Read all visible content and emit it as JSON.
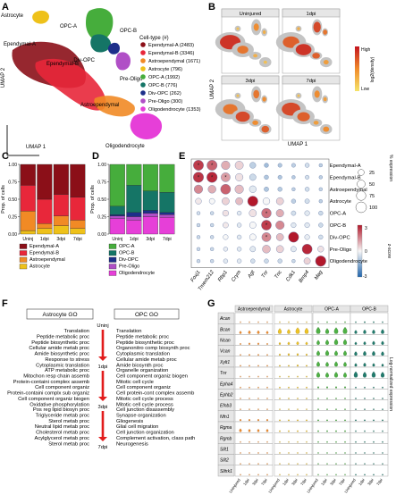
{
  "colors": {
    "ependymal_a": "#8b0f18",
    "ependymal_b": "#e8273a",
    "astroependymal": "#f18a25",
    "astrocyte": "#eec11a",
    "opc_a": "#46ad3c",
    "opc_b": "#157566",
    "div_opc": "#1d2f8a",
    "pre_oligo": "#b04fc6",
    "oligodendrocyte": "#e63fd8",
    "grey": "#c4c4c4",
    "density_high": "#c4141e",
    "density_low": "#f5e46a",
    "arrow": "#e21c1c"
  },
  "panels": {
    "A": "A",
    "B": "B",
    "C": "C",
    "D": "D",
    "E": "E",
    "F": "F",
    "G": "G"
  },
  "panelA": {
    "xlabel": "UMAP 1",
    "ylabel": "UMAP 2",
    "cluster_labels": {
      "astrocyte": "Astrocyte",
      "opc_a": "OPC-A",
      "opc_b": "OPC-B",
      "div_opc": "Div-OPC",
      "ependymal_a": "Ependymal-A",
      "ependymal_b": "Ependymal-B",
      "pre_oligo": "Pre-Oligo",
      "astroependymal": "Astroependymal",
      "oligodendrocyte": "Oligodendrocyte"
    },
    "legend_title": "Cell-type (#)",
    "legend": [
      {
        "label": "Ependymal-A (2483)",
        "color_key": "ependymal_a"
      },
      {
        "label": "Ependymal-B (3346)",
        "color_key": "ependymal_b"
      },
      {
        "label": "Astroependymal (1671)",
        "color_key": "astroependymal"
      },
      {
        "label": "Astrocyte (796)",
        "color_key": "astrocyte"
      },
      {
        "label": "OPC-A (1992)",
        "color_key": "opc_a"
      },
      {
        "label": "OPC-B (776)",
        "color_key": "opc_b"
      },
      {
        "label": "Div-OPC (262)",
        "color_key": "div_opc"
      },
      {
        "label": "Pre-Oligo (300)",
        "color_key": "pre_oligo"
      },
      {
        "label": "Oligodendrocyte (1353)",
        "color_key": "oligodendrocyte"
      }
    ]
  },
  "panelB": {
    "xlabel": "UMAP 1",
    "ylabel": "UMAP 2",
    "facets": [
      "Uninjured",
      "1dpi",
      "3dpi",
      "7dpi"
    ],
    "colorbar_title": "log2(density)",
    "colorbar_high": "High",
    "colorbar_low": "Low"
  },
  "panelE": {
    "size_legend_title": "% expression",
    "size_values": [
      "25",
      "50",
      "75",
      "100"
    ],
    "color_legend_title": "z-score",
    "color_ticks": [
      "3",
      "0",
      "-3"
    ]
  },
  "panelF": {
    "astro_header": "Astrocyte GO",
    "opc_header": "OPC GO",
    "timepoints": [
      "Uninj",
      "1dpi",
      "3dpi",
      "7dpi"
    ],
    "astro_groups": [
      [
        "Translation",
        "Peptide metabolic proc",
        "Peptide biosynthetic proc",
        "Cellular amide metab proc",
        "Amide biosynthetic proc",
        "Response to stress",
        "Cytoplasmic translation"
      ],
      [
        "ATP metabolic proc",
        "Mitochon resp chain assemb",
        "Protein-containi complex assemb",
        "Cell component organiz",
        "Protein-containi complx sub organiz",
        "Cell component organiz biogen",
        "Oxidative phosphorylation"
      ],
      [
        "Pos reg lipid biosyn proc",
        "Triglyceride metab proc",
        "Sterol metab proc",
        "Neutral lipid metab proc",
        "Cholesterol metab proc",
        "Acylglycerol metab proc",
        "Sterol metab proc"
      ]
    ],
    "opc_groups": [
      [
        "Translation",
        "Peptide metabolic proc",
        "Peptide biosynthetic proc",
        "Organonitro comp biosynth proc",
        "Cytoplasmic translation",
        "Cellular amide metab proc",
        "Amide biosynth proc"
      ],
      [
        "Organelle organization",
        "Cell component organiz biogen",
        "Mitotic cell cycle",
        "Cell component organiz",
        "Cell protein-cont complex assemb",
        "Mitotic cell cycle process",
        "Mitotic cell cycle process"
      ],
      [
        "Cell junction disassembly",
        "Synapse organization",
        "Gliogenesis",
        "Glial cell migration",
        "Cell junction organization",
        "Complement activation, class path",
        "Neurogenesis"
      ]
    ]
  },
  "panelG": {
    "columns": [
      "Astroependymal",
      "Astrocyte",
      "OPC-A",
      "OPC-B"
    ],
    "ylabel": "Log-normalized expression",
    "xticks": [
      "Uninjured",
      "1dpi",
      "3dpi",
      "7dpi"
    ]
  },
  "chart_data": [
    {
      "type": "bar",
      "panel": "C",
      "ylabel": "Prop. of cells",
      "stacked": true,
      "categories": [
        "Uninj",
        "1dpi",
        "3dpi",
        "7dpi"
      ],
      "yticks": [
        "0.00",
        "0.25",
        "0.50",
        "0.75",
        "1.00"
      ],
      "ylim": [
        0,
        1
      ],
      "series": [
        {
          "name": "Astrocyte",
          "color_key": "astrocyte",
          "values": [
            0.05,
            0.08,
            0.12,
            0.08
          ]
        },
        {
          "name": "Astroependymal",
          "color_key": "astroependymal",
          "values": [
            0.28,
            0.07,
            0.14,
            0.12
          ]
        },
        {
          "name": "Ependymal-B",
          "color_key": "ependymal_b",
          "values": [
            0.37,
            0.35,
            0.31,
            0.33
          ]
        },
        {
          "name": "Ependymal-A",
          "color_key": "ependymal_a",
          "values": [
            0.3,
            0.5,
            0.43,
            0.47
          ]
        }
      ],
      "legend_order": [
        "Ependymal-A",
        "Ependymal-B",
        "Astroependymal",
        "Astrocyte"
      ]
    },
    {
      "type": "bar",
      "panel": "D",
      "ylabel": "Prop. of cells",
      "stacked": true,
      "categories": [
        "Uninj",
        "1dpi",
        "3dpi",
        "7dpi"
      ],
      "yticks": [
        "0.00",
        "0.25",
        "0.50",
        "0.75",
        "1.00"
      ],
      "ylim": [
        0,
        1
      ],
      "series": [
        {
          "name": "Oligodendrocyte",
          "color_key": "oligodendrocyte",
          "values": [
            0.22,
            0.2,
            0.25,
            0.24
          ]
        },
        {
          "name": "Pre-Oligo",
          "color_key": "pre_oligo",
          "values": [
            0.04,
            0.05,
            0.05,
            0.04
          ]
        },
        {
          "name": "Div-OPC",
          "color_key": "div_opc",
          "values": [
            0.02,
            0.06,
            0.04,
            0.03
          ]
        },
        {
          "name": "OPC-B",
          "color_key": "opc_b",
          "values": [
            0.12,
            0.39,
            0.28,
            0.29
          ]
        },
        {
          "name": "OPC-A",
          "color_key": "opc_a",
          "values": [
            0.6,
            0.3,
            0.38,
            0.4
          ]
        }
      ],
      "legend_order": [
        "OPC-A",
        "OPC-B",
        "Div-OPC",
        "Pre-Oligo",
        "Oligodendrocyte"
      ]
    },
    {
      "type": "scatter",
      "panel": "E",
      "subtype": "dotplot",
      "genes": [
        "Foxj1",
        "Tmem212",
        "Rbp1",
        "Crym",
        "Agt",
        "Tnr",
        "Tnc",
        "Cdk1",
        "Bmp4",
        "Mag"
      ],
      "celltypes": [
        "Ependymal-A",
        "Ependymal-B",
        "Astroependymal",
        "Astrocyte",
        "OPC-A",
        "OPC-B",
        "Div-OPC",
        "Pre-Oligo",
        "Oligodendrocyte"
      ],
      "pct": [
        [
          90,
          90,
          60,
          55,
          25,
          10,
          8,
          8,
          10,
          5
        ],
        [
          92,
          95,
          70,
          45,
          30,
          10,
          8,
          5,
          8,
          5
        ],
        [
          60,
          50,
          85,
          60,
          35,
          12,
          10,
          5,
          10,
          5
        ],
        [
          25,
          20,
          40,
          40,
          90,
          35,
          40,
          10,
          12,
          5
        ],
        [
          5,
          5,
          25,
          10,
          40,
          80,
          45,
          12,
          15,
          10
        ],
        [
          5,
          5,
          20,
          10,
          30,
          85,
          60,
          15,
          15,
          10
        ],
        [
          5,
          5,
          15,
          10,
          30,
          70,
          40,
          90,
          15,
          10
        ],
        [
          5,
          5,
          10,
          10,
          20,
          50,
          40,
          20,
          85,
          25
        ],
        [
          5,
          5,
          10,
          10,
          10,
          10,
          10,
          5,
          30,
          95
        ]
      ],
      "z": [
        [
          2.5,
          2.0,
          1.0,
          0.5,
          -0.8,
          -1.2,
          -1.0,
          -0.8,
          -0.5,
          -0.8
        ],
        [
          2.6,
          2.8,
          1.2,
          0.3,
          -0.6,
          -1.0,
          -1.0,
          -0.9,
          -0.5,
          -0.8
        ],
        [
          1.5,
          1.0,
          2.0,
          0.8,
          -0.3,
          -1.0,
          -0.9,
          -0.8,
          -0.5,
          -0.7
        ],
        [
          0.2,
          0.0,
          0.5,
          0.8,
          3.0,
          0.0,
          0.5,
          -0.8,
          -0.5,
          -0.8
        ],
        [
          -0.5,
          -0.6,
          0.3,
          -0.3,
          0.3,
          1.8,
          1.0,
          -0.5,
          -0.3,
          -0.6
        ],
        [
          -0.6,
          -0.6,
          0.2,
          -0.3,
          0.0,
          2.5,
          1.5,
          -0.3,
          -0.3,
          -0.6
        ],
        [
          -0.6,
          -0.6,
          0.0,
          -0.3,
          0.0,
          1.5,
          0.8,
          3.0,
          -0.2,
          -0.5
        ],
        [
          -0.6,
          -0.6,
          -0.2,
          -0.3,
          -0.3,
          0.8,
          0.5,
          -0.3,
          2.8,
          0.3
        ],
        [
          -0.6,
          -0.6,
          -0.3,
          -0.3,
          -0.5,
          -0.6,
          -0.6,
          -0.6,
          0.5,
          3.0
        ]
      ],
      "starred": [
        [
          0,
          0
        ],
        [
          0,
          1
        ],
        [
          1,
          0
        ],
        [
          1,
          1
        ],
        [
          1,
          2
        ],
        [
          4,
          5
        ],
        [
          5,
          5
        ],
        [
          6,
          5
        ]
      ]
    },
    {
      "type": "area",
      "panel": "G",
      "subtype": "violin",
      "genes": [
        "Acan",
        "Bcan",
        "Ncan",
        "Vcan",
        "Xylt1",
        "Tnr",
        "Epha4",
        "Ephb2",
        "Efnb3",
        "Nfn1",
        "Rgma",
        "Rgmb",
        "Slit1",
        "Slit2",
        "Slitrk1"
      ],
      "conditions": [
        "Uninjured",
        "1dpi",
        "3dpi",
        "7dpi"
      ],
      "level": [
        [
          [
            0.05,
            0.05,
            0.05,
            0.05
          ],
          [
            0.05,
            0.05,
            0.05,
            0.05
          ],
          [
            0.08,
            0.1,
            0.08,
            0.1
          ],
          [
            0.1,
            0.15,
            0.12,
            0.1
          ]
        ],
        [
          [
            0.3,
            0.35,
            0.35,
            0.3
          ],
          [
            0.6,
            0.5,
            0.7,
            0.65
          ],
          [
            0.75,
            0.6,
            0.7,
            0.75
          ],
          [
            0.4,
            0.45,
            0.45,
            0.5
          ]
        ],
        [
          [
            0.15,
            0.2,
            0.2,
            0.15
          ],
          [
            0.25,
            0.3,
            0.35,
            0.3
          ],
          [
            0.5,
            0.55,
            0.65,
            0.6
          ],
          [
            0.3,
            0.35,
            0.4,
            0.4
          ]
        ],
        [
          [
            0.1,
            0.15,
            0.15,
            0.1
          ],
          [
            0.2,
            0.25,
            0.25,
            0.2
          ],
          [
            0.55,
            0.6,
            0.55,
            0.55
          ],
          [
            0.45,
            0.5,
            0.5,
            0.45
          ]
        ],
        [
          [
            0.1,
            0.1,
            0.1,
            0.1
          ],
          [
            0.15,
            0.15,
            0.2,
            0.15
          ],
          [
            0.55,
            0.5,
            0.55,
            0.5
          ],
          [
            0.35,
            0.4,
            0.35,
            0.3
          ]
        ],
        [
          [
            0.05,
            0.05,
            0.05,
            0.05
          ],
          [
            0.1,
            0.1,
            0.1,
            0.1
          ],
          [
            0.6,
            0.55,
            0.6,
            0.55
          ],
          [
            0.65,
            0.6,
            0.65,
            0.6
          ]
        ],
        [
          [
            0.1,
            0.1,
            0.1,
            0.1
          ],
          [
            0.15,
            0.15,
            0.15,
            0.15
          ],
          [
            0.2,
            0.2,
            0.2,
            0.2
          ],
          [
            0.15,
            0.15,
            0.15,
            0.15
          ]
        ],
        [
          [
            0.05,
            0.05,
            0.05,
            0.05
          ],
          [
            0.1,
            0.1,
            0.1,
            0.1
          ],
          [
            0.1,
            0.1,
            0.1,
            0.1
          ],
          [
            0.1,
            0.1,
            0.1,
            0.1
          ]
        ],
        [
          [
            0.05,
            0.05,
            0.05,
            0.05
          ],
          [
            0.05,
            0.05,
            0.05,
            0.05
          ],
          [
            0.1,
            0.1,
            0.1,
            0.1
          ],
          [
            0.1,
            0.1,
            0.1,
            0.1
          ]
        ],
        [
          [
            0.2,
            0.2,
            0.2,
            0.2
          ],
          [
            0.15,
            0.15,
            0.15,
            0.15
          ],
          [
            0.15,
            0.15,
            0.15,
            0.15
          ],
          [
            0.15,
            0.15,
            0.15,
            0.15
          ]
        ],
        [
          [
            0.35,
            0.3,
            0.3,
            0.3
          ],
          [
            0.15,
            0.15,
            0.15,
            0.15
          ],
          [
            0.15,
            0.15,
            0.15,
            0.15
          ],
          [
            0.1,
            0.1,
            0.1,
            0.1
          ]
        ],
        [
          [
            0.05,
            0.05,
            0.05,
            0.05
          ],
          [
            0.05,
            0.05,
            0.05,
            0.05
          ],
          [
            0.1,
            0.1,
            0.1,
            0.1
          ],
          [
            0.1,
            0.1,
            0.1,
            0.1
          ]
        ],
        [
          [
            0.05,
            0.05,
            0.05,
            0.05
          ],
          [
            0.05,
            0.05,
            0.05,
            0.05
          ],
          [
            0.05,
            0.05,
            0.05,
            0.05
          ],
          [
            0.05,
            0.05,
            0.05,
            0.05
          ]
        ],
        [
          [
            0.05,
            0.05,
            0.05,
            0.05
          ],
          [
            0.05,
            0.05,
            0.05,
            0.05
          ],
          [
            0.05,
            0.05,
            0.05,
            0.05
          ],
          [
            0.05,
            0.05,
            0.05,
            0.05
          ]
        ],
        [
          [
            0.05,
            0.05,
            0.05,
            0.05
          ],
          [
            0.05,
            0.05,
            0.05,
            0.05
          ],
          [
            0.05,
            0.05,
            0.05,
            0.05
          ],
          [
            0.1,
            0.1,
            0.1,
            0.1
          ]
        ]
      ]
    }
  ]
}
